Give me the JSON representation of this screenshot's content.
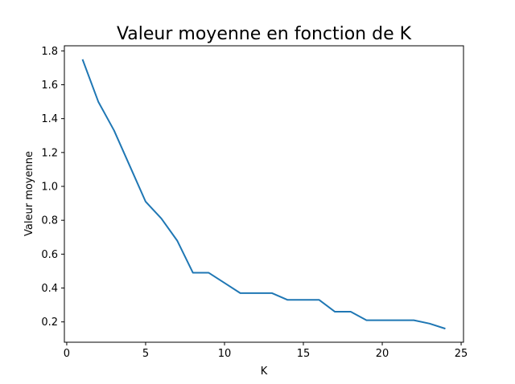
{
  "chart_data": {
    "type": "line",
    "title": "Valeur moyenne en fonction de K",
    "xlabel": "K",
    "ylabel": "Valeur moyenne",
    "xlim": [
      -0.15,
      25.15
    ],
    "ylim": [
      0.08,
      1.83
    ],
    "xticks": [
      0,
      5,
      10,
      15,
      20,
      25
    ],
    "yticks": [
      0.2,
      0.4,
      0.6,
      0.8,
      1.0,
      1.2,
      1.4,
      1.6,
      1.8
    ],
    "ytick_labels": [
      "0.2",
      "0.4",
      "0.6",
      "0.8",
      "1.0",
      "1.2",
      "1.4",
      "1.6",
      "1.8"
    ],
    "grid": false,
    "line_color": "#1f77b4",
    "x": [
      1,
      2,
      3,
      4,
      5,
      6,
      7,
      8,
      9,
      10,
      11,
      12,
      13,
      14,
      15,
      16,
      17,
      18,
      19,
      20,
      21,
      22,
      23,
      24
    ],
    "y": [
      1.75,
      1.5,
      1.33,
      1.12,
      0.91,
      0.81,
      0.68,
      0.49,
      0.49,
      0.43,
      0.37,
      0.37,
      0.37,
      0.33,
      0.33,
      0.33,
      0.26,
      0.26,
      0.21,
      0.21,
      0.21,
      0.21,
      0.19,
      0.16
    ]
  }
}
